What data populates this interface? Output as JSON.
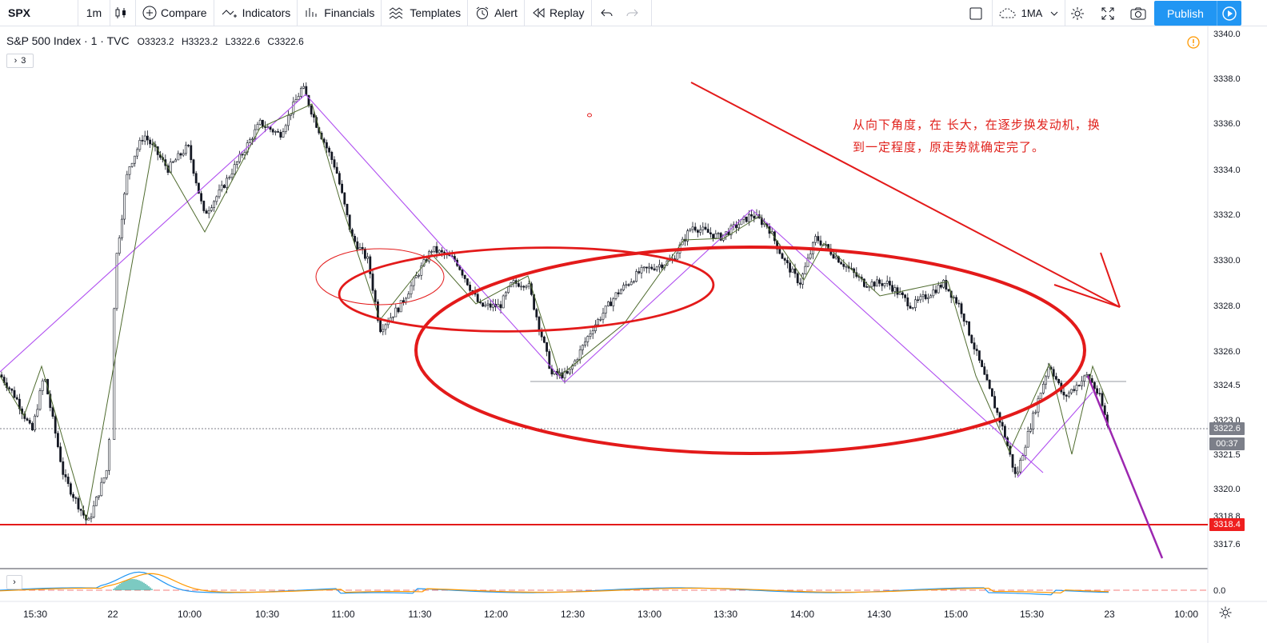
{
  "toolbar": {
    "symbol": "SPX",
    "interval": "1m",
    "compare_label": "Compare",
    "indicators_label": "Indicators",
    "financials_label": "Financials",
    "templates_label": "Templates",
    "alert_label": "Alert",
    "replay_label": "Replay",
    "ma_label": "1MA",
    "publish_label": "Publish"
  },
  "legend": {
    "title": "S&P 500 Index · 1 · TVC",
    "open": "O3323.2",
    "high": "H3323.2",
    "low": "L3322.6",
    "close": "C3322.6",
    "indicator_count": "3"
  },
  "annotation": {
    "line1": "从向下角度，在 长大，在逐步换发动机，换",
    "line2": "到一定程度，原走势就确定完了。"
  },
  "price_axis": {
    "ticks": [
      "3340.0",
      "3338.0",
      "3336.0",
      "3334.0",
      "3332.0",
      "3330.0",
      "3328.0",
      "3326.0",
      "3324.5",
      "3323.0",
      "3321.5",
      "3320.0",
      "3318.8",
      "3317.6"
    ],
    "last_price": "3322.6",
    "countdown": "00:37",
    "hline_price": "3318.4",
    "sub_tick": "0.0"
  },
  "time_axis": {
    "ticks": [
      "15:30",
      "22",
      "10:00",
      "10:30",
      "11:00",
      "11:30",
      "12:00",
      "12:30",
      "13:00",
      "13:30",
      "14:00",
      "14:30",
      "15:00",
      "15:30",
      "23",
      "10:00"
    ]
  },
  "colors": {
    "accent": "#2196f3",
    "drawing_red": "#e31a1a",
    "zigzag_purple": "#9c27b0",
    "zigzag_green": "#4f6b2f",
    "candle": "#131722",
    "macd_blue": "#2196f3",
    "macd_orange": "#ff9800",
    "hist_teal": "#26a69a"
  },
  "icons": {
    "chart_type": "candles-icon",
    "compare": "plus-circle-icon",
    "indicators": "indicators-icon",
    "financials": "financials-icon",
    "templates": "templates-icon",
    "alert": "alarm-clock-icon",
    "replay": "replay-icon",
    "undo": "undo-icon",
    "redo": "redo-icon",
    "layout": "square-icon",
    "cloud": "cloud-icon",
    "settings": "gear-icon",
    "fullscreen": "fullscreen-icon",
    "snapshot": "camera-icon",
    "play": "play-icon"
  }
}
